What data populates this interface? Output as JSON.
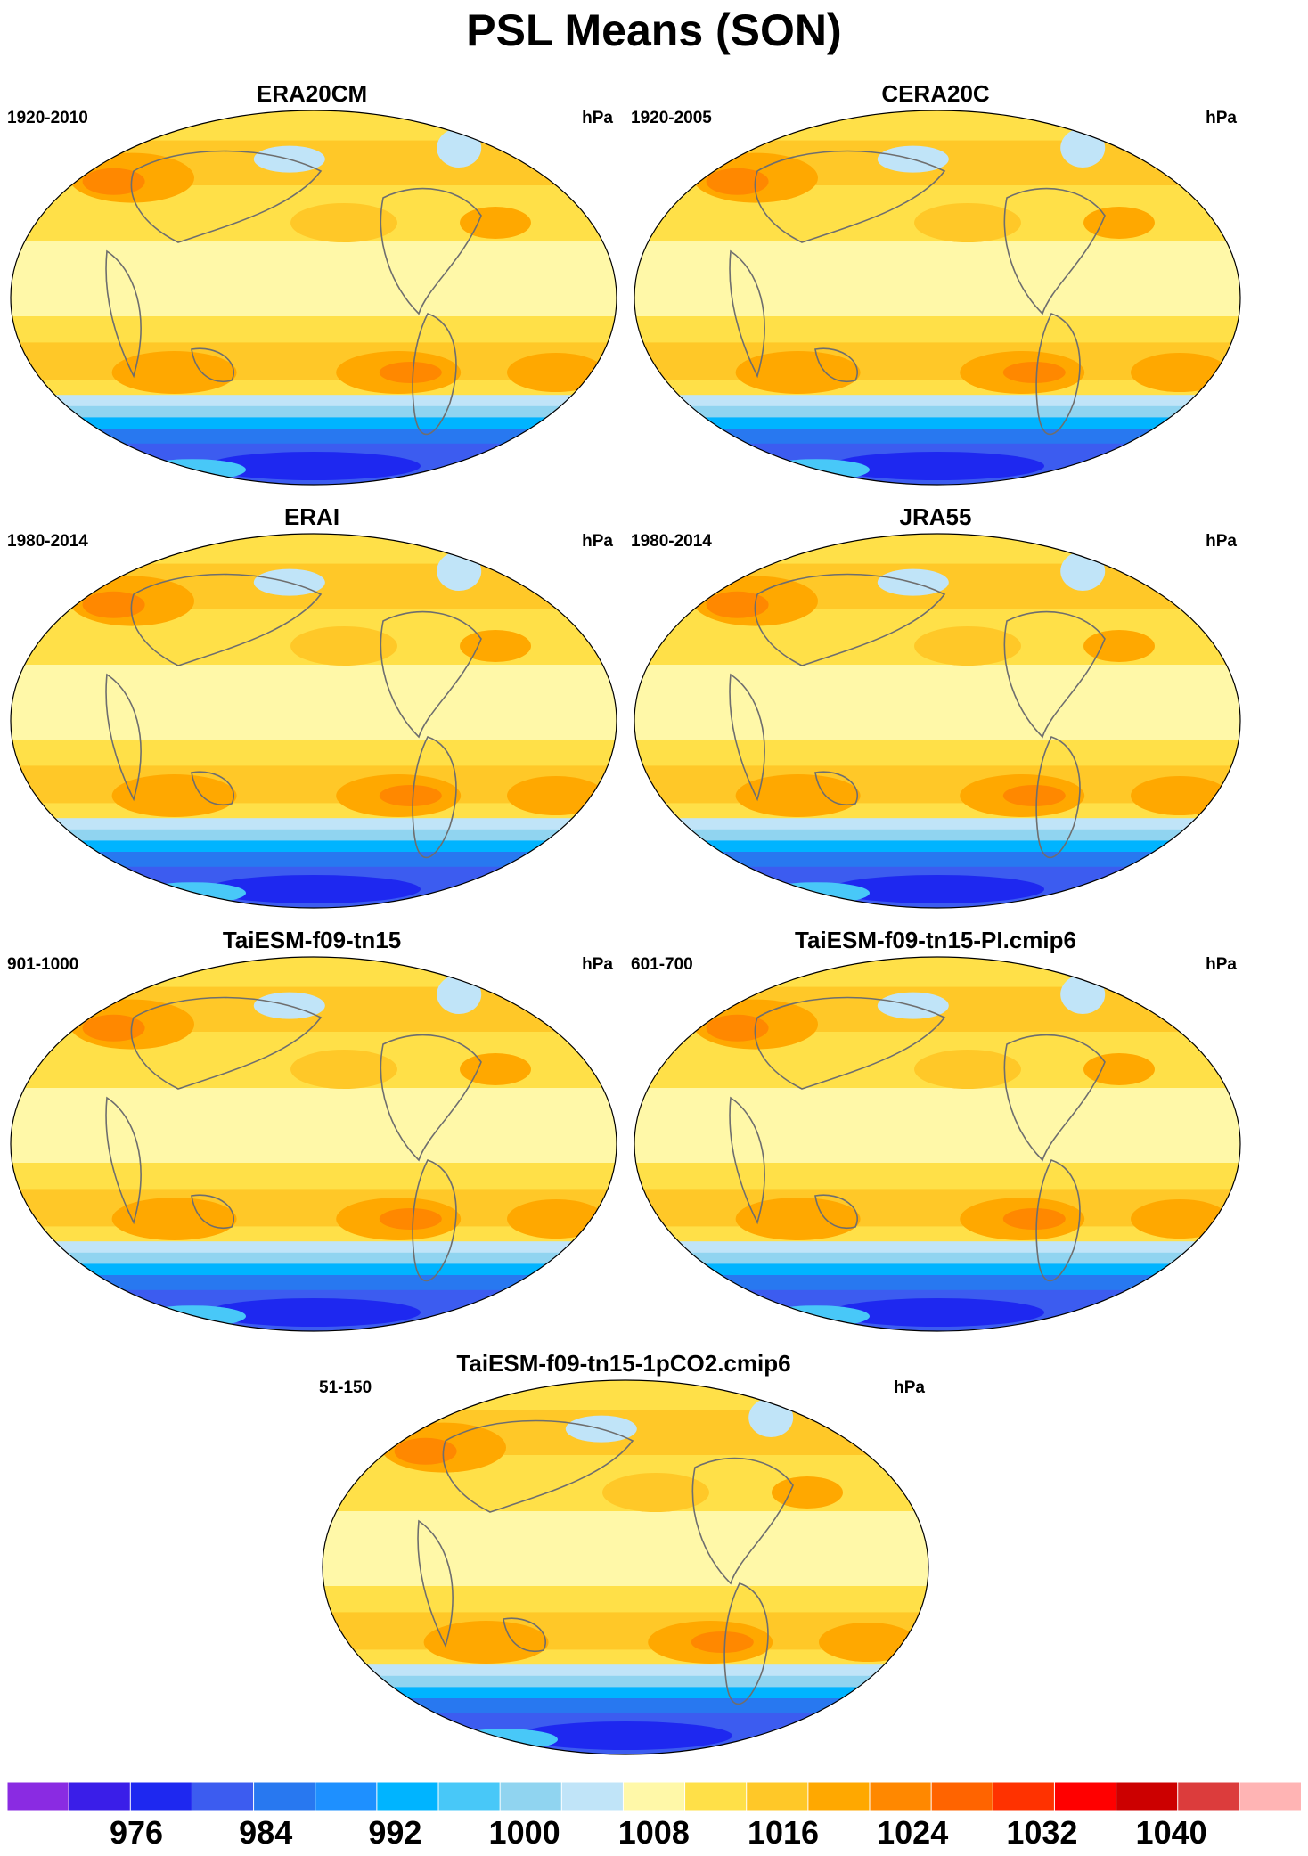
{
  "title": "PSL Means (SON)",
  "unit": "hPa",
  "panels": [
    {
      "name": "ERA20CM",
      "period": "1920-2010"
    },
    {
      "name": "CERA20C",
      "period": "1920-2005"
    },
    {
      "name": "ERAI",
      "period": "1980-2014"
    },
    {
      "name": "JRA55",
      "period": "1980-2014"
    },
    {
      "name": "TaiESM-f09-tn15",
      "period": "901-1000"
    },
    {
      "name": "TaiESM-f09-tn15-PI.cmip6",
      "period": "601-700"
    },
    {
      "name": "TaiESM-f09-tn15-1pCO2.cmip6",
      "period": "51-150"
    }
  ],
  "colorbar": {
    "colors": [
      "#8a2be2",
      "#3a1ee8",
      "#1e28f0",
      "#3c5cf0",
      "#2878f0",
      "#1e90ff",
      "#00b4ff",
      "#48c8f8",
      "#90d4f0",
      "#c0e4f8",
      "#fff8a8",
      "#ffe048",
      "#ffc828",
      "#ffa800",
      "#ff8800",
      "#ff6400",
      "#ff3200",
      "#ff0000",
      "#cc0000",
      "#dc3c3c",
      "#ffb4b4"
    ],
    "labels": [
      "976",
      "984",
      "992",
      "1000",
      "1008",
      "1016",
      "1024",
      "1032",
      "1040"
    ]
  },
  "chart_data": {
    "type": "heatmap",
    "variable": "PSL",
    "season": "SON",
    "units": "hPa",
    "levels": [
      972,
      976,
      980,
      984,
      988,
      992,
      996,
      1000,
      1004,
      1008,
      1012,
      1016,
      1020,
      1024,
      1028,
      1032,
      1036,
      1040,
      1044
    ],
    "projection": "global map",
    "panels": [
      "ERA20CM",
      "CERA20C",
      "ERAI",
      "JRA55",
      "TaiESM-f09-tn15",
      "TaiESM-f09-tn15-PI.cmip6",
      "TaiESM-f09-tn15-1pCO2.cmip6"
    ]
  }
}
